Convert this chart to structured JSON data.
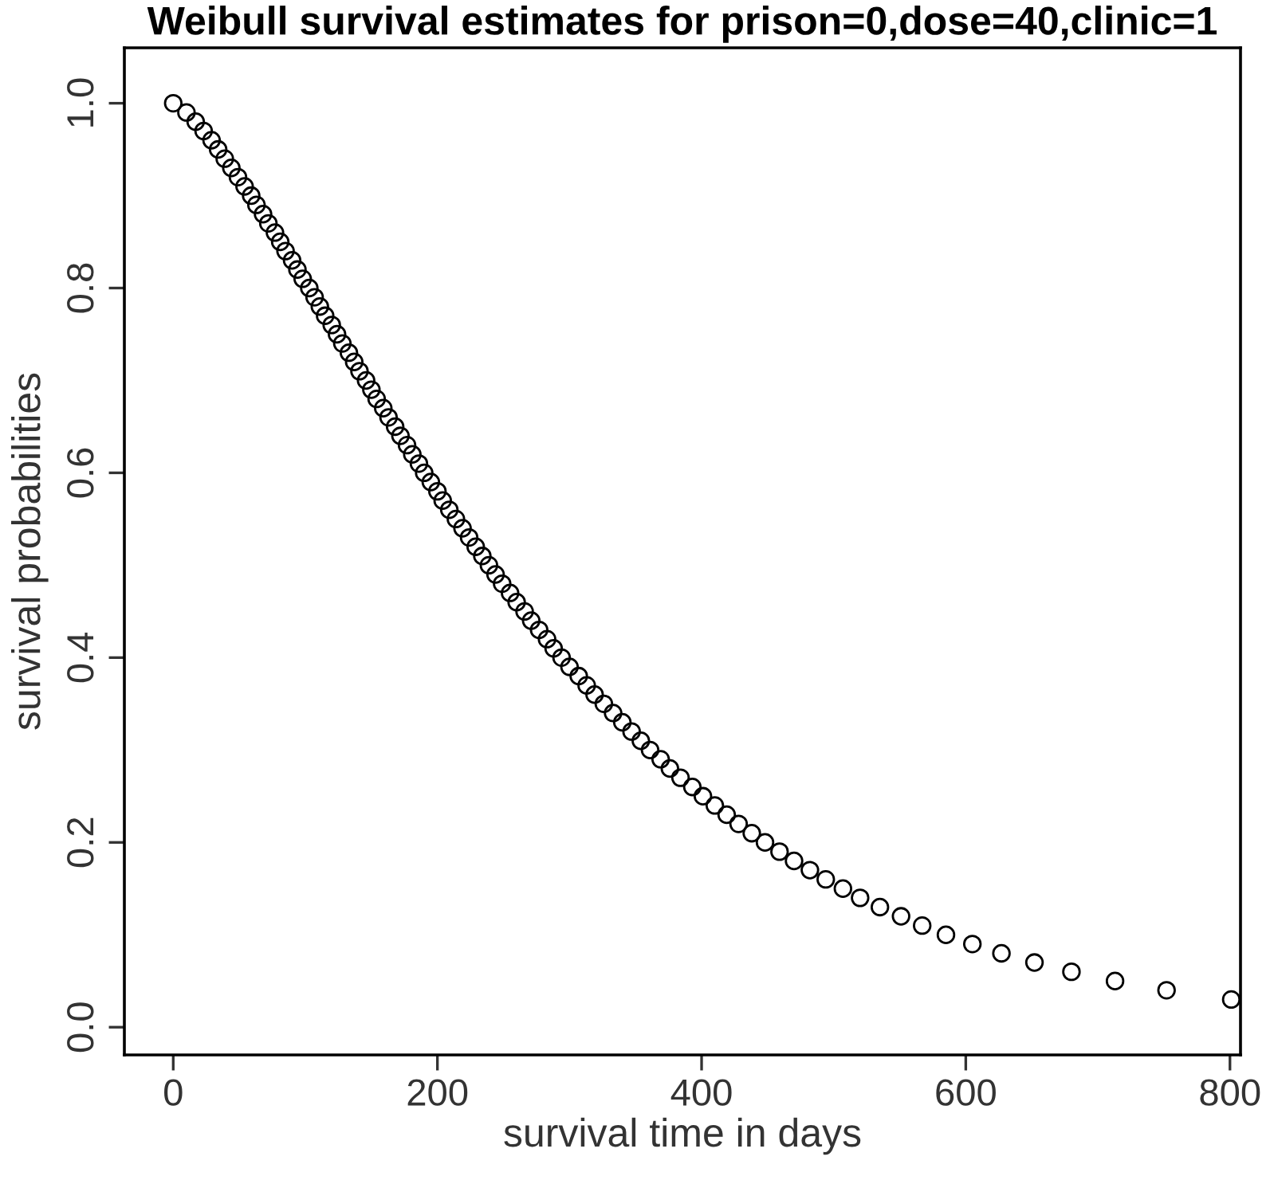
{
  "chart_data": {
    "type": "scatter",
    "title": "Weibull survival estimates for prison=0,dose=40,clinic=1",
    "xlabel": "survival time in days",
    "ylabel": "survival probabilities",
    "x": [
      0,
      10,
      17,
      23,
      29,
      34,
      39,
      44,
      49,
      54,
      59,
      63,
      68,
      72,
      77,
      81,
      85,
      90,
      94,
      98,
      103,
      107,
      111,
      115,
      120,
      124,
      128,
      133,
      137,
      141,
      146,
      150,
      154,
      159,
      163,
      168,
      172,
      177,
      181,
      186,
      190,
      195,
      200,
      204,
      209,
      214,
      219,
      224,
      229,
      234,
      239,
      244,
      249,
      255,
      260,
      266,
      271,
      277,
      283,
      288,
      294,
      300,
      307,
      313,
      319,
      326,
      333,
      340,
      347,
      354,
      361,
      369,
      376,
      384,
      393,
      401,
      410,
      419,
      428,
      438,
      448,
      459,
      470,
      482,
      494,
      507,
      520,
      535,
      551,
      567,
      585,
      605,
      627,
      652,
      680,
      713,
      752,
      801
    ],
    "series": [
      {
        "color": "#000000",
        "values": [
          1.0,
          0.99,
          0.98,
          0.97,
          0.96,
          0.95,
          0.94,
          0.93,
          0.92,
          0.91,
          0.9,
          0.89,
          0.88,
          0.87,
          0.86,
          0.85,
          0.84,
          0.83,
          0.82,
          0.81,
          0.8,
          0.79,
          0.78,
          0.77,
          0.76,
          0.75,
          0.74,
          0.73,
          0.72,
          0.71,
          0.7,
          0.69,
          0.68,
          0.67,
          0.66,
          0.65,
          0.64,
          0.63,
          0.62,
          0.61,
          0.6,
          0.59,
          0.58,
          0.57,
          0.56,
          0.55,
          0.54,
          0.53,
          0.52,
          0.51,
          0.5,
          0.49,
          0.48,
          0.47,
          0.46,
          0.45,
          0.44,
          0.43,
          0.42,
          0.41,
          0.4,
          0.39,
          0.38,
          0.37,
          0.36,
          0.35,
          0.34,
          0.33,
          0.32,
          0.31,
          0.3,
          0.29,
          0.28,
          0.27,
          0.26,
          0.25,
          0.24,
          0.23,
          0.22,
          0.21,
          0.2,
          0.19,
          0.18,
          0.17,
          0.16,
          0.15,
          0.14,
          0.13,
          0.12,
          0.11,
          0.1,
          0.09,
          0.08,
          0.07,
          0.06,
          0.05,
          0.04,
          0.03
        ]
      }
    ],
    "marker": "circle",
    "xlim": [
      -37,
      808
    ],
    "ylim": [
      -0.03,
      1.06
    ],
    "xticks": [
      0,
      200,
      400,
      600,
      800
    ],
    "yticks": [
      {
        "value": 0,
        "label": "0.0"
      },
      {
        "value": 0.2,
        "label": "0.2"
      },
      {
        "value": 0.4,
        "label": "0.4"
      },
      {
        "value": 0.6,
        "label": "0.6"
      },
      {
        "value": 0.8,
        "label": "0.8"
      },
      {
        "value": 1,
        "label": "1.0"
      }
    ],
    "grid": false,
    "legend": false
  }
}
